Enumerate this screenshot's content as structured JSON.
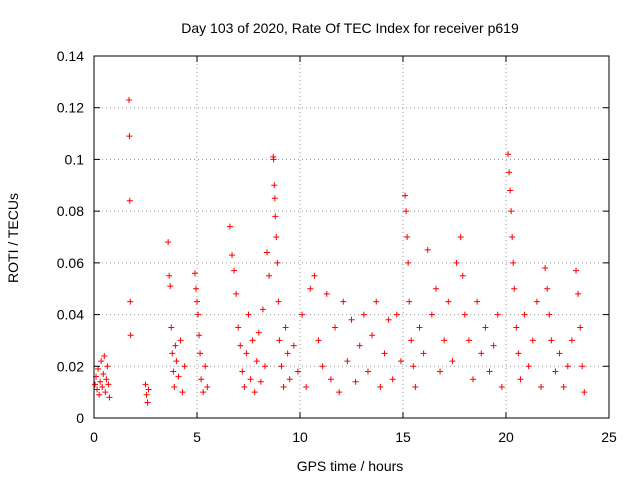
{
  "chart_data": {
    "type": "scatter",
    "title": "Day 103 of 2020, Rate Of TEC Index for receiver p619",
    "xlabel": "GPS time / hours",
    "ylabel": "ROTI / TECUs",
    "xlim": [
      0,
      25
    ],
    "ylim": [
      0,
      0.14
    ],
    "x_ticks": [
      "0",
      "5",
      "10",
      "15",
      "20",
      "25"
    ],
    "y_ticks": [
      "0",
      "0.02",
      "0.04",
      "0.06",
      "0.08",
      "0.1",
      "0.12",
      "0.14"
    ],
    "grid": true,
    "marker": "plus",
    "color": "#ff0000",
    "series": [
      {
        "points": [
          [
            0.05,
            0.013
          ],
          [
            0.1,
            0.016
          ],
          [
            0.15,
            0.011
          ],
          [
            0.2,
            0.019
          ],
          [
            0.25,
            0.009
          ],
          [
            0.3,
            0.014
          ],
          [
            0.35,
            0.022
          ],
          [
            0.4,
            0.012
          ],
          [
            0.45,
            0.017
          ],
          [
            0.5,
            0.024
          ],
          [
            0.55,
            0.01
          ],
          [
            0.6,
            0.015
          ],
          [
            0.65,
            0.02
          ],
          [
            0.7,
            0.013
          ],
          [
            0.75,
            0.008
          ],
          [
            1.7,
            0.123
          ],
          [
            1.72,
            0.109
          ],
          [
            1.74,
            0.084
          ],
          [
            1.76,
            0.045
          ],
          [
            1.78,
            0.032
          ],
          [
            2.5,
            0.013
          ],
          [
            2.55,
            0.009
          ],
          [
            2.6,
            0.006
          ],
          [
            2.65,
            0.011
          ],
          [
            3.6,
            0.068
          ],
          [
            3.65,
            0.055
          ],
          [
            3.7,
            0.051
          ],
          [
            3.75,
            0.035
          ],
          [
            3.8,
            0.025
          ],
          [
            3.85,
            0.018
          ],
          [
            3.9,
            0.012
          ],
          [
            3.95,
            0.028
          ],
          [
            4.0,
            0.022
          ],
          [
            4.1,
            0.016
          ],
          [
            4.2,
            0.03
          ],
          [
            4.3,
            0.01
          ],
          [
            4.4,
            0.02
          ],
          [
            4.9,
            0.056
          ],
          [
            4.95,
            0.05
          ],
          [
            5.0,
            0.045
          ],
          [
            5.05,
            0.04
          ],
          [
            5.1,
            0.032
          ],
          [
            5.15,
            0.025
          ],
          [
            5.2,
            0.015
          ],
          [
            5.3,
            0.01
          ],
          [
            5.4,
            0.02
          ],
          [
            5.5,
            0.012
          ],
          [
            6.6,
            0.074
          ],
          [
            6.7,
            0.063
          ],
          [
            6.8,
            0.057
          ],
          [
            6.9,
            0.048
          ],
          [
            7.0,
            0.035
          ],
          [
            7.1,
            0.028
          ],
          [
            7.2,
            0.018
          ],
          [
            7.3,
            0.012
          ],
          [
            7.4,
            0.025
          ],
          [
            7.5,
            0.04
          ],
          [
            7.6,
            0.015
          ],
          [
            7.7,
            0.03
          ],
          [
            7.8,
            0.01
          ],
          [
            7.9,
            0.022
          ],
          [
            8.0,
            0.033
          ],
          [
            8.1,
            0.014
          ],
          [
            8.2,
            0.042
          ],
          [
            8.3,
            0.02
          ],
          [
            8.4,
            0.064
          ],
          [
            8.5,
            0.055
          ],
          [
            8.7,
            0.101
          ],
          [
            8.72,
            0.1
          ],
          [
            8.75,
            0.09
          ],
          [
            8.78,
            0.085
          ],
          [
            8.8,
            0.078
          ],
          [
            8.85,
            0.07
          ],
          [
            8.9,
            0.06
          ],
          [
            8.95,
            0.045
          ],
          [
            9.0,
            0.03
          ],
          [
            9.1,
            0.02
          ],
          [
            9.2,
            0.012
          ],
          [
            9.3,
            0.035
          ],
          [
            9.4,
            0.025
          ],
          [
            9.5,
            0.015
          ],
          [
            9.7,
            0.028
          ],
          [
            9.9,
            0.018
          ],
          [
            10.1,
            0.04
          ],
          [
            10.3,
            0.012
          ],
          [
            10.5,
            0.05
          ],
          [
            10.7,
            0.055
          ],
          [
            10.9,
            0.03
          ],
          [
            11.1,
            0.02
          ],
          [
            11.3,
            0.048
          ],
          [
            11.5,
            0.015
          ],
          [
            11.7,
            0.035
          ],
          [
            11.9,
            0.01
          ],
          [
            12.1,
            0.045
          ],
          [
            12.3,
            0.022
          ],
          [
            12.5,
            0.038
          ],
          [
            12.7,
            0.014
          ],
          [
            12.9,
            0.028
          ],
          [
            13.1,
            0.04
          ],
          [
            13.3,
            0.018
          ],
          [
            13.5,
            0.032
          ],
          [
            13.7,
            0.045
          ],
          [
            13.9,
            0.012
          ],
          [
            14.1,
            0.025
          ],
          [
            14.3,
            0.038
          ],
          [
            14.5,
            0.015
          ],
          [
            14.7,
            0.04
          ],
          [
            14.9,
            0.022
          ],
          [
            15.1,
            0.086
          ],
          [
            15.15,
            0.08
          ],
          [
            15.2,
            0.07
          ],
          [
            15.25,
            0.06
          ],
          [
            15.3,
            0.045
          ],
          [
            15.4,
            0.03
          ],
          [
            15.5,
            0.02
          ],
          [
            15.6,
            0.012
          ],
          [
            15.8,
            0.035
          ],
          [
            16.0,
            0.025
          ],
          [
            16.2,
            0.065
          ],
          [
            16.4,
            0.04
          ],
          [
            16.6,
            0.05
          ],
          [
            16.8,
            0.018
          ],
          [
            17.0,
            0.03
          ],
          [
            17.2,
            0.045
          ],
          [
            17.4,
            0.022
          ],
          [
            17.6,
            0.06
          ],
          [
            17.8,
            0.07
          ],
          [
            17.9,
            0.055
          ],
          [
            18.0,
            0.04
          ],
          [
            18.2,
            0.03
          ],
          [
            18.4,
            0.015
          ],
          [
            18.6,
            0.045
          ],
          [
            18.8,
            0.025
          ],
          [
            19.0,
            0.035
          ],
          [
            19.2,
            0.018
          ],
          [
            19.4,
            0.028
          ],
          [
            19.6,
            0.04
          ],
          [
            19.8,
            0.012
          ],
          [
            20.1,
            0.102
          ],
          [
            20.15,
            0.095
          ],
          [
            20.2,
            0.088
          ],
          [
            20.25,
            0.08
          ],
          [
            20.3,
            0.07
          ],
          [
            20.35,
            0.06
          ],
          [
            20.4,
            0.05
          ],
          [
            20.5,
            0.035
          ],
          [
            20.6,
            0.025
          ],
          [
            20.7,
            0.015
          ],
          [
            20.9,
            0.04
          ],
          [
            21.1,
            0.02
          ],
          [
            21.3,
            0.03
          ],
          [
            21.5,
            0.045
          ],
          [
            21.7,
            0.012
          ],
          [
            21.9,
            0.058
          ],
          [
            22.0,
            0.05
          ],
          [
            22.1,
            0.04
          ],
          [
            22.2,
            0.03
          ],
          [
            22.4,
            0.018
          ],
          [
            22.6,
            0.025
          ],
          [
            22.8,
            0.012
          ],
          [
            23.0,
            0.02
          ],
          [
            23.2,
            0.03
          ],
          [
            23.4,
            0.057
          ],
          [
            23.5,
            0.048
          ],
          [
            23.6,
            0.035
          ],
          [
            23.7,
            0.02
          ],
          [
            23.8,
            0.01
          ]
        ]
      }
    ]
  }
}
